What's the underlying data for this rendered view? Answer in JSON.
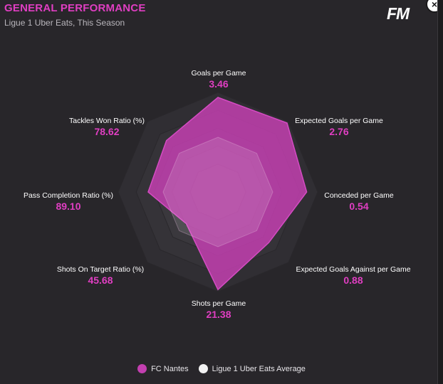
{
  "header": {
    "title": "GENERAL PERFORMANCE",
    "subtitle": "Ligue 1 Uber Eats, This Season",
    "logo": "FM",
    "close_icon": "close-icon"
  },
  "chart_data": {
    "type": "radar",
    "axes": [
      {
        "label": "Goals per Game",
        "value": "3.46"
      },
      {
        "label": "Expected Goals per Game",
        "value": "2.76"
      },
      {
        "label": "Conceded per Game",
        "value": "0.54"
      },
      {
        "label": "Expected Goals Against per Game",
        "value": "0.88"
      },
      {
        "label": "Shots per Game",
        "value": "21.38"
      },
      {
        "label": "Shots On Target Ratio (%)",
        "value": "45.68"
      },
      {
        "label": "Pass Completion Ratio (%)",
        "value": "89.10"
      },
      {
        "label": "Tackles Won Ratio (%)",
        "value": "78.62"
      }
    ],
    "series": [
      {
        "name": "FC Nantes",
        "color": "#c33fb0",
        "fractions": [
          0.95,
          0.98,
          0.89,
          0.72,
          0.98,
          0.45,
          0.7,
          0.73
        ]
      },
      {
        "name": "Ligue 1 Uber Eats Average",
        "color": "#ffffff",
        "fractions": [
          0.55,
          0.55,
          0.55,
          0.55,
          0.55,
          0.55,
          0.55,
          0.55
        ]
      }
    ]
  },
  "legend": {
    "items": [
      {
        "label": "FC Nantes",
        "color": "#c33fb0"
      },
      {
        "label": "Ligue 1 Uber Eats Average",
        "color": "#f2f2f2"
      }
    ]
  }
}
